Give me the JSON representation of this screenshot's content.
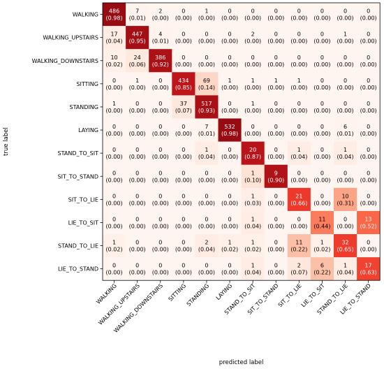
{
  "chart_data": {
    "type": "heatmap",
    "title": "",
    "xlabel": "predicted label",
    "ylabel": "true label",
    "labels": [
      "WALKING",
      "WALKING_UPSTAIRS",
      "WALKING_DOWNSTAIRS",
      "SITTING",
      "STANDING",
      "LAYING",
      "STAND_TO_SIT",
      "SIT_TO_STAND",
      "SIT_TO_LIE",
      "LIE_TO_SIT",
      "STAND_TO_LIE",
      "LIE_TO_STAND"
    ],
    "counts": [
      [
        486,
        7,
        2,
        0,
        1,
        0,
        0,
        0,
        0,
        0,
        0,
        0
      ],
      [
        17,
        447,
        4,
        0,
        0,
        0,
        2,
        0,
        0,
        0,
        1,
        0
      ],
      [
        10,
        24,
        386,
        0,
        0,
        0,
        0,
        0,
        0,
        0,
        0,
        0
      ],
      [
        0,
        1,
        0,
        434,
        69,
        1,
        1,
        1,
        1,
        0,
        0,
        0
      ],
      [
        1,
        0,
        0,
        37,
        517,
        0,
        1,
        0,
        0,
        0,
        0,
        0
      ],
      [
        0,
        0,
        0,
        0,
        7,
        532,
        0,
        0,
        0,
        0,
        6,
        0
      ],
      [
        0,
        0,
        0,
        0,
        1,
        0,
        20,
        0,
        1,
        0,
        1,
        0
      ],
      [
        0,
        0,
        0,
        0,
        0,
        0,
        1,
        9,
        0,
        0,
        0,
        0
      ],
      [
        0,
        0,
        0,
        0,
        0,
        0,
        1,
        0,
        21,
        0,
        10,
        0
      ],
      [
        0,
        0,
        0,
        0,
        0,
        0,
        1,
        0,
        0,
        11,
        0,
        13
      ],
      [
        1,
        0,
        0,
        0,
        2,
        1,
        1,
        0,
        11,
        1,
        32,
        0
      ],
      [
        0,
        0,
        0,
        0,
        0,
        0,
        1,
        0,
        2,
        6,
        1,
        17
      ]
    ],
    "normalized": [
      [
        "(0.98)",
        "(0.01)",
        "(0.00)",
        "(0.00)",
        "(0.00)",
        "(0.00)",
        "(0.00)",
        "(0.00)",
        "(0.00)",
        "(0.00)",
        "(0.00)",
        "(0.00)"
      ],
      [
        "(0.04)",
        "(0.95)",
        "(0.01)",
        "(0.00)",
        "(0.00)",
        "(0.00)",
        "(0.00)",
        "(0.00)",
        "(0.00)",
        "(0.00)",
        "(0.00)",
        "(0.00)"
      ],
      [
        "(0.02)",
        "(0.06)",
        "(0.92)",
        "(0.00)",
        "(0.00)",
        "(0.00)",
        "(0.00)",
        "(0.00)",
        "(0.00)",
        "(0.00)",
        "(0.00)",
        "(0.00)"
      ],
      [
        "(0.00)",
        "(0.00)",
        "(0.00)",
        "(0.85)",
        "(0.14)",
        "(0.00)",
        "(0.00)",
        "(0.00)",
        "(0.00)",
        "(0.00)",
        "(0.00)",
        "(0.00)"
      ],
      [
        "(0.00)",
        "(0.00)",
        "(0.00)",
        "(0.07)",
        "(0.93)",
        "(0.00)",
        "(0.00)",
        "(0.00)",
        "(0.00)",
        "(0.00)",
        "(0.00)",
        "(0.00)"
      ],
      [
        "(0.00)",
        "(0.00)",
        "(0.00)",
        "(0.00)",
        "(0.01)",
        "(0.98)",
        "(0.00)",
        "(0.00)",
        "(0.00)",
        "(0.00)",
        "(0.01)",
        "(0.00)"
      ],
      [
        "(0.00)",
        "(0.00)",
        "(0.00)",
        "(0.00)",
        "(0.04)",
        "(0.00)",
        "(0.87)",
        "(0.00)",
        "(0.04)",
        "(0.00)",
        "(0.04)",
        "(0.00)"
      ],
      [
        "(0.00)",
        "(0.00)",
        "(0.00)",
        "(0.00)",
        "(0.00)",
        "(0.00)",
        "(0.10)",
        "(0.90)",
        "(0.00)",
        "(0.00)",
        "(0.00)",
        "(0.00)"
      ],
      [
        "(0.00)",
        "(0.00)",
        "(0.00)",
        "(0.00)",
        "(0.00)",
        "(0.00)",
        "(0.03)",
        "(0.00)",
        "(0.66)",
        "(0.00)",
        "(0.31)",
        "(0.00)"
      ],
      [
        "(0.00)",
        "(0.00)",
        "(0.00)",
        "(0.00)",
        "(0.00)",
        "(0.00)",
        "(0.04)",
        "(0.00)",
        "(0.00)",
        "(0.44)",
        "(0.00)",
        "(0.52)"
      ],
      [
        "(0.02)",
        "(0.00)",
        "(0.00)",
        "(0.00)",
        "(0.04)",
        "(0.02)",
        "(0.02)",
        "(0.00)",
        "(0.22)",
        "(0.02)",
        "(0.65)",
        "(0.00)"
      ],
      [
        "(0.00)",
        "(0.00)",
        "(0.00)",
        "(0.00)",
        "(0.00)",
        "(0.00)",
        "(0.04)",
        "(0.00)",
        "(0.07)",
        "(0.22)",
        "(0.04)",
        "(0.63)"
      ]
    ],
    "colormap": "Reds",
    "grid": false,
    "legend": "none"
  }
}
